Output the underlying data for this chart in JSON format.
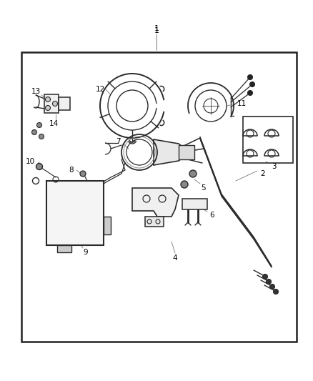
{
  "bg_color": "#ffffff",
  "border_color": "#222222",
  "line_color": "#2a2a2a",
  "fig_width": 4.38,
  "fig_height": 5.33,
  "border": [
    0.07,
    0.04,
    0.95,
    0.86
  ],
  "label_fs": 7.5
}
